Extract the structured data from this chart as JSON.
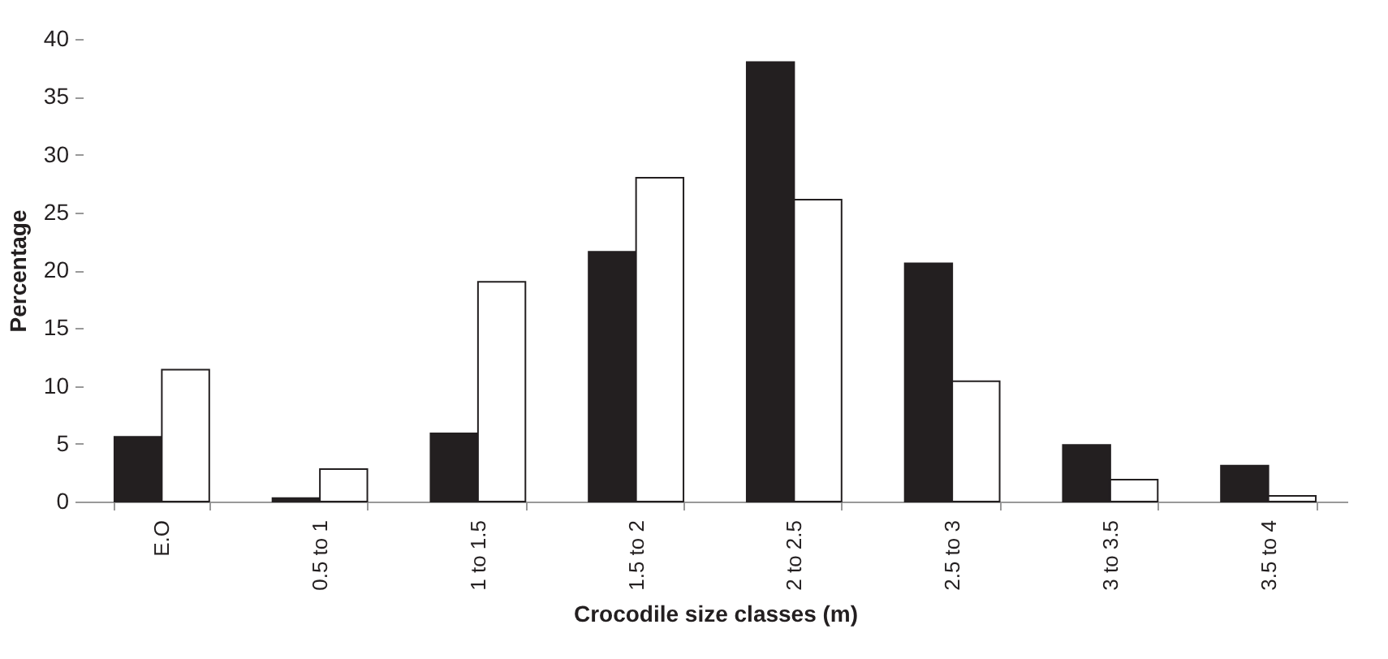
{
  "chart_data": {
    "type": "bar",
    "xlabel": "Crocodile size classes (m)",
    "ylabel": "Percentage",
    "categories": [
      "E.O",
      "0.5 to 1",
      "1 to 1.5",
      "1.5 to 2",
      "2 to 2.5",
      "2.5 to 3",
      "3 to 3.5",
      "3.5 to 4"
    ],
    "series": [
      {
        "color": "#231f20",
        "values": [
          5.6,
          0.3,
          5.9,
          21.6,
          38.0,
          20.6,
          4.9,
          3.1
        ]
      },
      {
        "color": "#ffffff",
        "values": [
          11.4,
          2.8,
          19.0,
          28.0,
          26.1,
          10.4,
          1.9,
          0.5
        ]
      }
    ],
    "ylim": [
      0,
      40
    ],
    "yticks": [
      0,
      5,
      10,
      15,
      20,
      25,
      30,
      35,
      40
    ],
    "grid": false,
    "legend": false
  }
}
